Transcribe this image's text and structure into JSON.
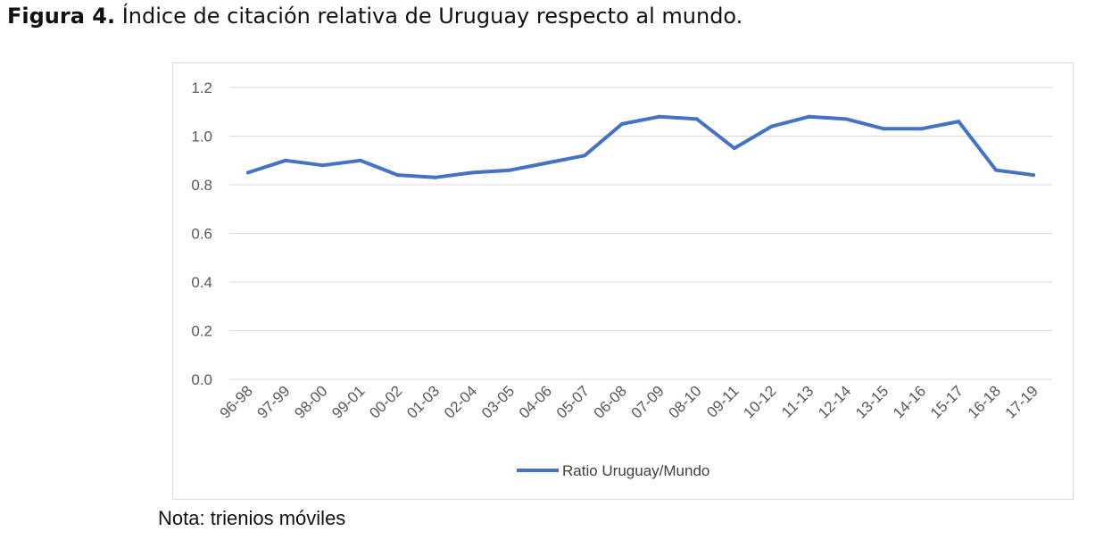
{
  "caption": {
    "prefix": "Figura 4.",
    "text": " Índice de citación relativa de Uruguay respecto al mundo."
  },
  "note": "Nota: trienios móviles",
  "chart_data": {
    "type": "line",
    "categories": [
      "96-98",
      "97-99",
      "98-00",
      "99-01",
      "00-02",
      "01-03",
      "02-04",
      "03-05",
      "04-06",
      "05-07",
      "06-08",
      "07-09",
      "08-10",
      "09-11",
      "10-12",
      "11-13",
      "12-14",
      "13-15",
      "14-16",
      "15-17",
      "16-18",
      "17-19"
    ],
    "series": [
      {
        "name": "Ratio Uruguay/Mundo",
        "color": "#4472c4",
        "values": [
          0.85,
          0.9,
          0.88,
          0.9,
          0.84,
          0.83,
          0.85,
          0.86,
          0.89,
          0.92,
          1.05,
          1.08,
          1.07,
          0.95,
          1.04,
          1.08,
          1.07,
          1.03,
          1.03,
          1.06,
          0.86,
          0.84
        ]
      }
    ],
    "yticks": [
      "0.0",
      "0.2",
      "0.4",
      "0.6",
      "0.8",
      "1.0",
      "1.2"
    ],
    "ylim": [
      0,
      1.2
    ],
    "grid": true,
    "legend": "bottom"
  }
}
